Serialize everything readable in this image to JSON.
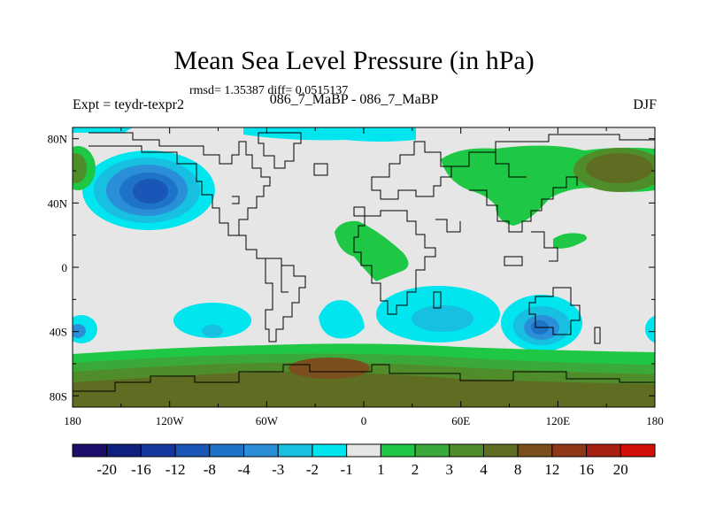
{
  "title": "Mean Sea Level Pressure (in hPa)",
  "stats_text": "rmsd= 1.35387 diff= 0.0515137",
  "experiment_label": "Expt = teydr-texpr2",
  "experiment_names": "086_7_MaBP - 086_7_MaBP",
  "season": "DJF",
  "map": {
    "lat_ticks": [
      "80N",
      "40N",
      "0",
      "40S",
      "80S"
    ],
    "lon_ticks": [
      "180",
      "120W",
      "60W",
      "0",
      "60E",
      "120E",
      "180"
    ],
    "lat_values": [
      80,
      40,
      0,
      -40,
      -80
    ],
    "lon_values": [
      -180,
      -120,
      -60,
      0,
      60,
      120,
      180
    ]
  },
  "colorbar": {
    "labels": [
      "-20",
      "-16",
      "-12",
      "-8",
      "-4",
      "-3",
      "-2",
      "-1",
      "1",
      "2",
      "3",
      "4",
      "8",
      "12",
      "16",
      "20"
    ],
    "colors": [
      "#1b0f6b",
      "#10207e",
      "#1637a0",
      "#1a56b8",
      "#1e72c8",
      "#2a8fd8",
      "#17bfe0",
      "#00e5ee",
      "#e6e6e6",
      "#1ec844",
      "#3ba93a",
      "#4f8d2b",
      "#5e6d22",
      "#7a4f1d",
      "#8e3818",
      "#a82014",
      "#d01008"
    ]
  },
  "palette": {
    "neutral": "#e6e6e6",
    "cyan": "#00e5ee",
    "light_blue": "#17bfe0",
    "blue": "#2a8fd8",
    "mid_blue": "#1e72c8",
    "dark_blue": "#1a56b8",
    "green": "#1ec844",
    "olive": "#4f8d2b",
    "dark_olive": "#5e6d22",
    "brown": "#7a4f1d"
  }
}
